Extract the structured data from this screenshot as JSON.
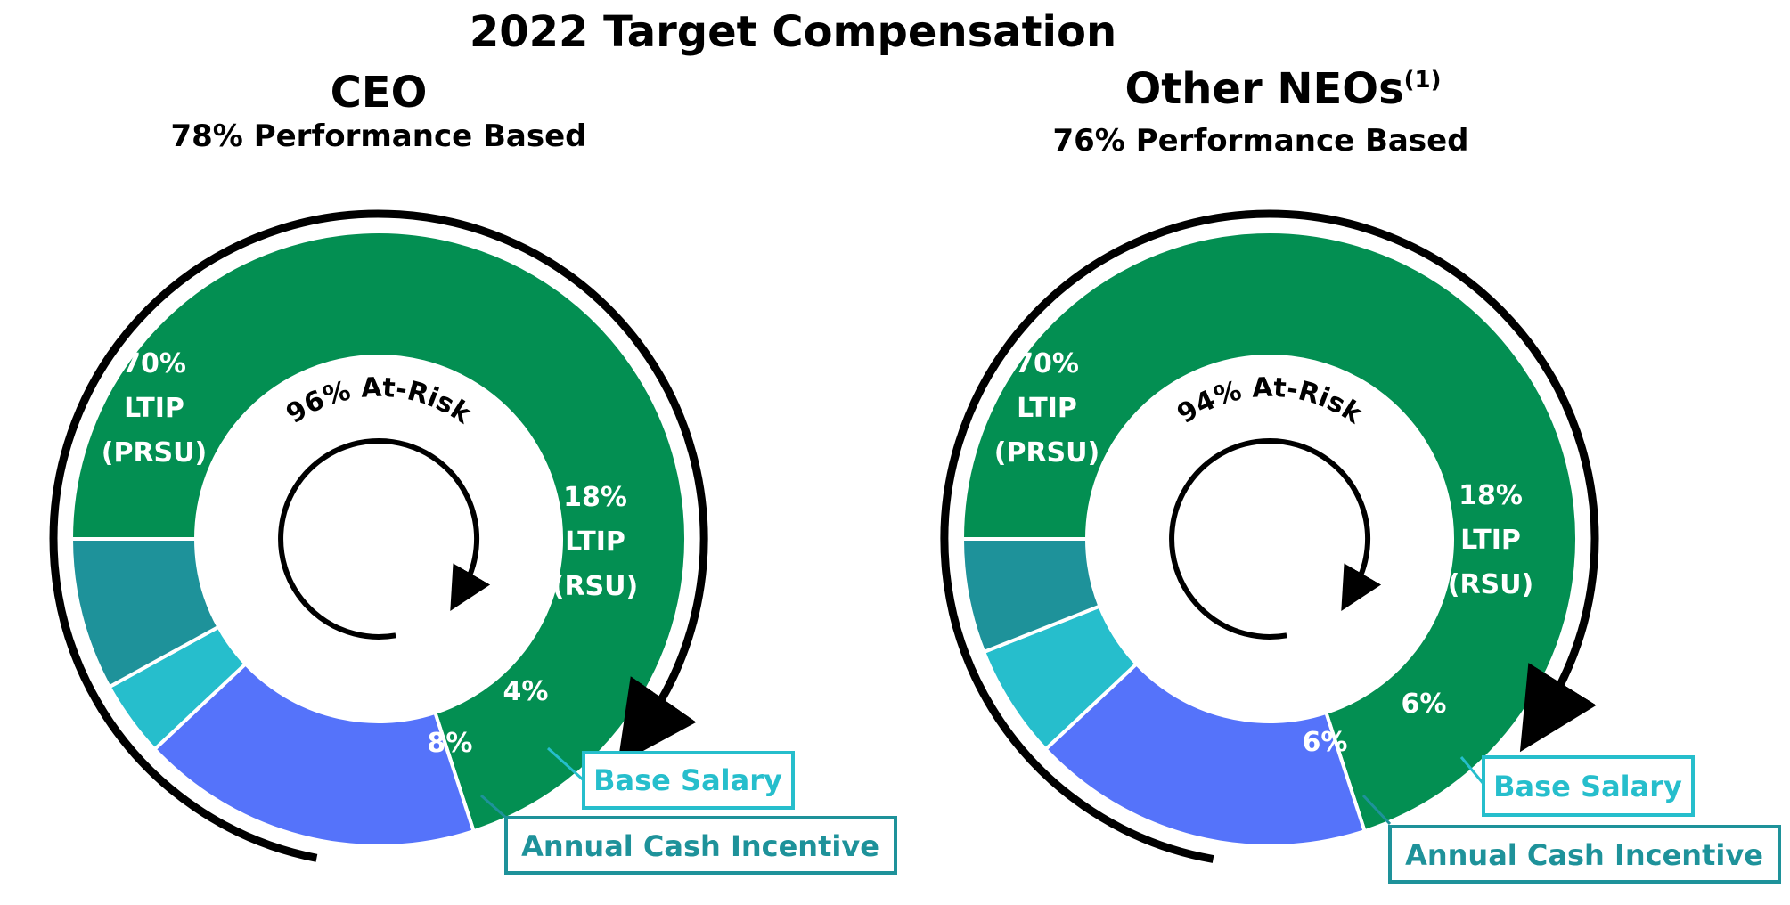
{
  "title": "2022 Target Compensation",
  "colors": {
    "ltip_prsu": "#038F52",
    "ltip_rsu": "#5573FA",
    "base_salary": "#26BECC",
    "annual_cash": "#1E929A",
    "arrow": "#000000"
  },
  "charts": [
    {
      "heading": "CEO",
      "heading_sup": "",
      "performance_text": "78% Performance Based",
      "at_risk_text": "96% At-Risk",
      "slice_labels": [
        [
          "70%",
          "LTIP",
          "(PRSU)"
        ],
        [
          "18%",
          "LTIP",
          "(RSU)"
        ],
        [
          "4%"
        ],
        [
          "8%"
        ]
      ],
      "callouts": {
        "base_salary": "Base Salary",
        "annual_cash": "Annual Cash Incentive"
      }
    },
    {
      "heading": "Other NEOs",
      "heading_sup": "(1)",
      "performance_text": "76% Performance Based",
      "at_risk_text": "94% At-Risk",
      "slice_labels": [
        [
          "70%",
          "LTIP",
          "(PRSU)"
        ],
        [
          "18%",
          "LTIP",
          "(RSU)"
        ],
        [
          "6%"
        ],
        [
          "6%"
        ]
      ],
      "callouts": {
        "base_salary": "Base Salary",
        "annual_cash": "Annual Cash Incentive"
      }
    }
  ],
  "chart_data": [
    {
      "type": "pie",
      "title": "CEO",
      "subtitle": "78% Performance Based",
      "categories": [
        "LTIP (PRSU)",
        "LTIP (RSU)",
        "Base Salary",
        "Annual Cash Incentive"
      ],
      "values": [
        70,
        18,
        4,
        8
      ],
      "annotations": [
        "96% At-Risk"
      ]
    },
    {
      "type": "pie",
      "title": "Other NEOs(1)",
      "subtitle": "76% Performance Based",
      "categories": [
        "LTIP (PRSU)",
        "LTIP (RSU)",
        "Base Salary",
        "Annual Cash Incentive"
      ],
      "values": [
        70,
        18,
        6,
        6
      ],
      "annotations": [
        "94% At-Risk"
      ]
    }
  ]
}
